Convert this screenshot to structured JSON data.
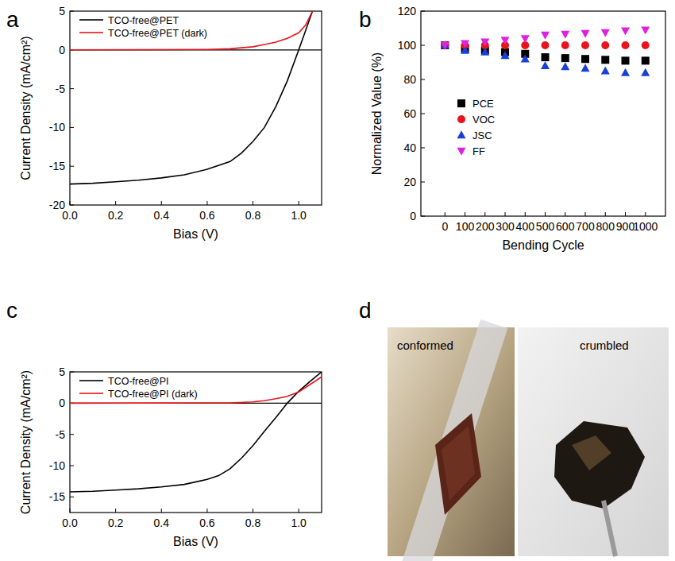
{
  "chart_data": [
    {
      "type": "line",
      "panel": "a",
      "x_label": "Bias (V)",
      "y_label": "Current Density (mA/cm²)",
      "xlim": [
        0,
        1.1
      ],
      "xticks": [
        {
          "value": 0,
          "label": "0.0"
        },
        0.2,
        0.4,
        0.6,
        0.8,
        {
          "value": 1,
          "label": "1.0"
        }
      ],
      "ylim": [
        -20,
        5
      ],
      "yticks": [
        -20,
        -15,
        -10,
        -5,
        0,
        5
      ],
      "reference_line": 0,
      "legend": "upper left",
      "series": [
        {
          "name": "TCO-free@PET",
          "color": "#000000",
          "x": [
            0,
            0.1,
            0.2,
            0.3,
            0.4,
            0.5,
            0.6,
            0.7,
            0.75,
            0.8,
            0.85,
            0.9,
            0.95,
            1.0,
            1.03,
            1.06
          ],
          "values": [
            -17.3,
            -17.2,
            -17.0,
            -16.8,
            -16.5,
            -16.1,
            -15.4,
            -14.4,
            -13.3,
            -11.8,
            -10.0,
            -7.3,
            -4.0,
            0,
            2.5,
            5
          ]
        },
        {
          "name": "TCO-free@PET (dark)",
          "color": "#e8141b",
          "x": [
            0,
            0.6,
            0.7,
            0.8,
            0.85,
            0.9,
            0.95,
            1.0,
            1.03,
            1.06
          ],
          "values": [
            0,
            0.05,
            0.15,
            0.4,
            0.7,
            1.0,
            1.5,
            2.2,
            3.2,
            5
          ]
        }
      ]
    },
    {
      "type": "scatter",
      "panel": "b",
      "x_label": "Bending Cycle",
      "y_label": "Normalized Value (%)",
      "xlim": [
        -120,
        1100
      ],
      "xticks": [
        0,
        100,
        200,
        300,
        400,
        500,
        600,
        700,
        800,
        900,
        1000
      ],
      "ylim": [
        0,
        120
      ],
      "yticks": [
        0,
        20,
        40,
        60,
        80,
        100,
        120
      ],
      "legend": "center left",
      "x": [
        0,
        100,
        200,
        300,
        400,
        500,
        600,
        700,
        800,
        900,
        1000
      ],
      "series": [
        {
          "name": "PCE",
          "color": "#000000",
          "marker": "square",
          "values": [
            100,
            98,
            97,
            96,
            95,
            93,
            92.5,
            92,
            91.5,
            91,
            91
          ]
        },
        {
          "name": "VOC",
          "color": "#e8141b",
          "marker": "circle",
          "values": [
            100,
            100,
            100,
            100,
            100,
            100,
            100,
            100,
            100,
            100,
            100
          ]
        },
        {
          "name": "JSC",
          "color": "#1a3fd6",
          "marker": "triangle",
          "values": [
            100,
            97,
            96,
            94,
            92,
            88,
            87.5,
            86.5,
            85,
            84,
            84
          ]
        },
        {
          "name": "FF",
          "color": "#e020e0",
          "marker": "triangle-down",
          "values": [
            100,
            101,
            102,
            103,
            104,
            106,
            106.5,
            107,
            107.5,
            108.5,
            109
          ]
        }
      ]
    },
    {
      "type": "line",
      "panel": "c",
      "x_label": "Bias (V)",
      "y_label": "Current Density (mA/cm²)",
      "xlim": [
        0,
        1.1
      ],
      "xticks": [
        {
          "value": 0,
          "label": "0.0"
        },
        0.2,
        0.4,
        0.6,
        0.8,
        {
          "value": 1,
          "label": "1.0"
        }
      ],
      "ylim": [
        -17.5,
        5
      ],
      "yticks": [
        -15,
        -10,
        -5,
        0,
        5
      ],
      "reference_line": 0,
      "legend": "upper left",
      "series": [
        {
          "name": "TCO-free@PI",
          "color": "#000000",
          "x": [
            0,
            0.1,
            0.2,
            0.3,
            0.4,
            0.5,
            0.6,
            0.65,
            0.7,
            0.75,
            0.8,
            0.85,
            0.9,
            0.95,
            1.0,
            1.05,
            1.1
          ],
          "values": [
            -14.2,
            -14.1,
            -13.9,
            -13.7,
            -13.4,
            -13.0,
            -12.2,
            -11.6,
            -10.5,
            -8.8,
            -6.8,
            -4.5,
            -2.3,
            0,
            1.9,
            3.5,
            5
          ]
        },
        {
          "name": "TCO-free@PI (dark)",
          "color": "#e8141b",
          "x": [
            0,
            0.7,
            0.8,
            0.85,
            0.9,
            0.95,
            1.0,
            1.05,
            1.1
          ],
          "values": [
            0,
            0.05,
            0.2,
            0.4,
            0.7,
            1.1,
            1.8,
            3.0,
            4.2
          ]
        }
      ]
    }
  ],
  "photo_panel": {
    "panel": "d",
    "labels": [
      "conformed",
      "crumbled"
    ]
  }
}
